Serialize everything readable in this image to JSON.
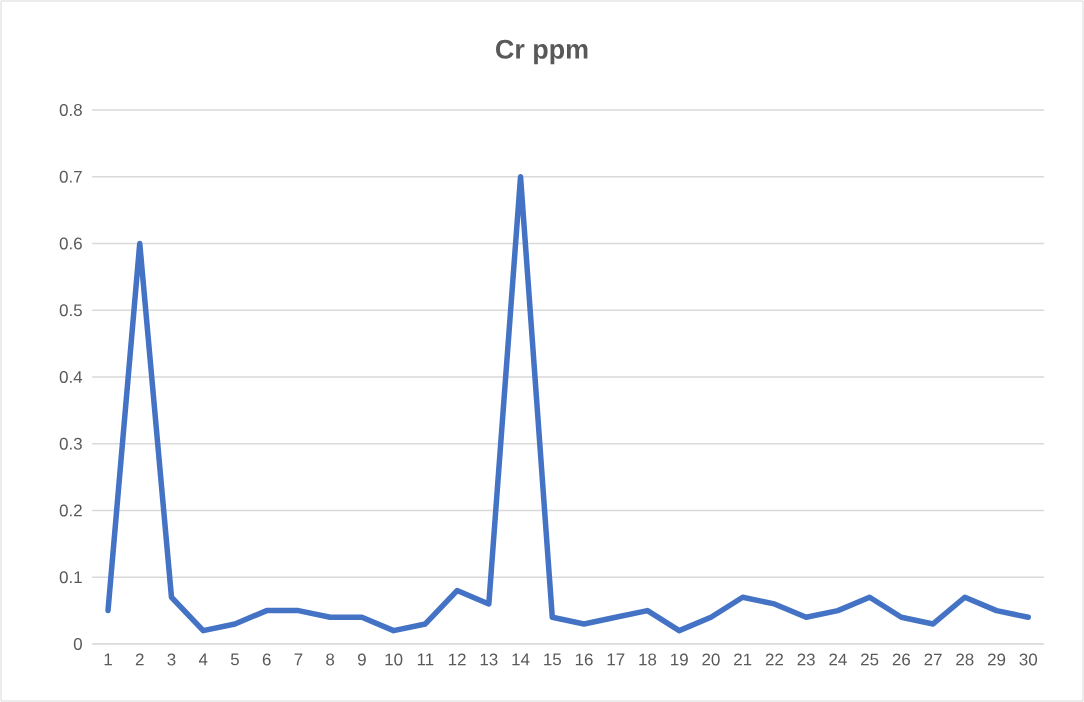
{
  "chart_data": {
    "type": "line",
    "title": "Cr ppm",
    "categories": [
      "1",
      "2",
      "3",
      "4",
      "5",
      "6",
      "7",
      "8",
      "9",
      "10",
      "11",
      "12",
      "13",
      "14",
      "15",
      "16",
      "17",
      "18",
      "19",
      "20",
      "21",
      "22",
      "23",
      "24",
      "25",
      "26",
      "27",
      "28",
      "29",
      "30"
    ],
    "series": [
      {
        "color": "#4472c4",
        "values": [
          0.05,
          0.6,
          0.07,
          0.02,
          0.03,
          0.05,
          0.05,
          0.04,
          0.04,
          0.02,
          0.03,
          0.08,
          0.06,
          0.7,
          0.04,
          0.03,
          0.04,
          0.05,
          0.02,
          0.04,
          0.07,
          0.06,
          0.04,
          0.05,
          0.07,
          0.04,
          0.03,
          0.07,
          0.05,
          0.04
        ]
      }
    ],
    "ylim": [
      0,
      0.8
    ],
    "yticks": [
      0,
      0.1,
      0.2,
      0.3,
      0.4,
      0.5,
      0.6,
      0.7,
      0.8
    ],
    "grid": "y",
    "marker": "none",
    "line_style": "solid"
  }
}
